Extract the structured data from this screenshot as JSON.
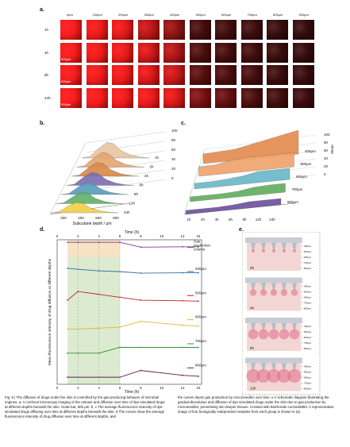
{
  "panel_labels": {
    "a": "a.",
    "b": "b.",
    "c": "c.",
    "d": "d.",
    "e": "e."
  },
  "panel_a": {
    "columns": [
      "0μm",
      "100μm",
      "200μm",
      "300μm",
      "400μm",
      "500μm",
      "600μm",
      "700μm",
      "800μm",
      "900μm"
    ],
    "rows": [
      "1h",
      "4h",
      "8h",
      "24h"
    ],
    "scale_bar": "500μm",
    "intensity": [
      [
        0.95,
        0.9,
        0.85,
        0.65,
        0.45,
        0.12,
        0.1,
        0.08,
        0.06,
        0.05
      ],
      [
        0.95,
        0.92,
        0.88,
        0.75,
        0.6,
        0.15,
        0.12,
        0.1,
        0.07,
        0.05
      ],
      [
        0.95,
        0.92,
        0.9,
        0.8,
        0.7,
        0.2,
        0.15,
        0.12,
        0.08,
        0.06
      ],
      [
        0.95,
        0.95,
        0.92,
        0.88,
        0.8,
        0.35,
        0.25,
        0.15,
        0.1,
        0.08
      ]
    ]
  },
  "panel_b": {
    "xlabel": "Subcutane depth / μm",
    "x_ticks": [
      "200",
      "400",
      "600",
      "800"
    ],
    "z_ticks": [
      "100",
      "80",
      "60",
      "40",
      "20",
      "0"
    ],
    "series": [
      "1h",
      "2h",
      "4h",
      "6h",
      "8h",
      "12h",
      "24h"
    ],
    "colors": [
      "#e9c6a3",
      "#e3a870",
      "#d98a4a",
      "#7e6fb0",
      "#5a9fbd",
      "#61b36b",
      "#f2d04b"
    ]
  },
  "panel_c": {
    "x_ticks": [
      "1h",
      "2h",
      "4h",
      "6h",
      "8h",
      "12h",
      "24h"
    ],
    "z_ticks": [
      "100",
      "80",
      "60",
      "40",
      "20",
      "0"
    ],
    "zlabel": "Mean",
    "series": [
      "400μm",
      "500μm",
      "600μm",
      "700μm",
      "800μm"
    ],
    "colors": [
      "#e58a4e",
      "#f0a36a",
      "#67b8c8",
      "#5fae5c",
      "#6b4f9c"
    ]
  },
  "panel_d": {
    "title": "Time (h)",
    "xlabel": "Time (h)",
    "ylabel": "Mean fluorescence intensity of drug diffusion at different depths",
    "x_ticks": [
      "0",
      "2",
      "4",
      "6",
      "8",
      "10",
      "12",
      "24"
    ],
    "legend_gas": "Gas production volume"
  },
  "chart_data": {
    "type": "line",
    "x": [
      0,
      1,
      2,
      4,
      6,
      8,
      12,
      24
    ],
    "series": [
      {
        "name": "Gas production volume",
        "color": "#7a3f93",
        "values": [
          null,
          0.95,
          0.95,
          0.95,
          0.95,
          0.7,
          0.72,
          0.72
        ]
      },
      {
        "name": "400μm",
        "color": "#2b6fa6",
        "values": [
          null,
          0.85,
          0.8,
          0.72,
          0.68,
          0.6,
          0.62,
          0.62
        ]
      },
      {
        "name": "500μm",
        "color": "#c0202a",
        "values": [
          null,
          0.45,
          0.9,
          0.75,
          0.6,
          0.45,
          0.42,
          0.4
        ]
      },
      {
        "name": "600μm",
        "color": "#e0b830",
        "values": [
          null,
          0.2,
          0.2,
          0.25,
          0.3,
          0.6,
          0.4,
          0.35
        ]
      },
      {
        "name": "700μm",
        "color": "#3b8e3b",
        "values": [
          null,
          0.2,
          0.2,
          0.2,
          0.5,
          0.5,
          0.5,
          0.5
        ]
      },
      {
        "name": "800μm",
        "color": "#5b1f55",
        "values": [
          null,
          0.2,
          0.2,
          0.2,
          0.2,
          0.55,
          0.3,
          0.25
        ]
      }
    ]
  },
  "panel_e": {
    "labels": [
      "0h",
      "4h",
      "8h",
      "12h"
    ],
    "depth_ticks": [
      "400μm",
      "500μm",
      "600μm",
      "700μm",
      "800μm"
    ]
  },
  "caption": {
    "left": "Fig. 6 | The diffusion of drugs under the skin is controlled by the gas-producing behavior of microbial engines. a. A confocal microscopy imaging of the release and diffusion over time of dye-simulated drugs at different depths beneath the skin. Scale bar, 500 μm. b, c The average fluorescence intensity of dye-simulated drugs diffusing over time at different depths beneath the skin. d The curves show the average fluorescence intensity of drug diffusion over time at different depths, and",
    "right": "the curves depict gas production by microneedles over time. e A schematic diagram illustrating the gradual dissolution and diffusion of dye-simulated drugs under the skin due to gas production by microneedles, penetrating into deeper tissues. Created with BioRender.com/a33893. A representative image of four biologically independent samples from each group is shown in (a)."
  }
}
